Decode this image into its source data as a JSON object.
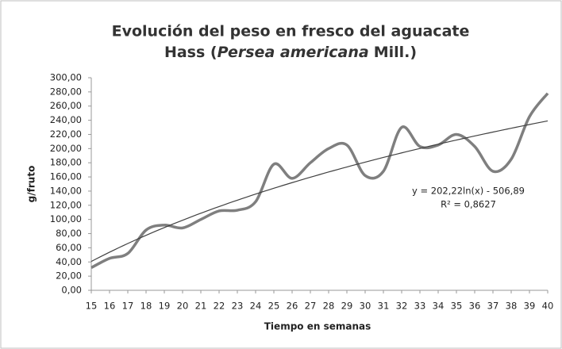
{
  "chart_data": {
    "type": "line",
    "title": [
      "Evolución del peso en fresco del aguacate",
      "Hass (",
      "Persea americana",
      "Mill.)"
    ],
    "x_label": "Tiempo en semanas",
    "y_label": "g/fruto",
    "x": [
      15,
      16,
      17,
      18,
      19,
      20,
      21,
      22,
      23,
      24,
      25,
      26,
      27,
      28,
      29,
      30,
      31,
      32,
      33,
      34,
      35,
      36,
      37,
      38,
      39,
      40
    ],
    "xlim": [
      15,
      40
    ],
    "xticks": [
      15,
      16,
      17,
      18,
      19,
      20,
      21,
      22,
      23,
      24,
      25,
      26,
      27,
      28,
      29,
      30,
      31,
      32,
      33,
      34,
      35,
      36,
      37,
      38,
      39,
      40
    ],
    "series": [
      {
        "color": "#7f7f7f",
        "values": [
          32,
          45,
          52,
          85,
          92,
          88,
          100,
          112,
          113,
          125,
          178,
          158,
          180,
          200,
          205,
          162,
          168,
          230,
          203,
          205,
          220,
          203,
          168,
          185,
          245,
          278
        ]
      }
    ],
    "ylim": [
      0,
      300
    ],
    "yticks": [
      {
        "value": 0,
        "label": "0,00"
      },
      {
        "value": 20,
        "label": "20,00"
      },
      {
        "value": 40,
        "label": "40,00"
      },
      {
        "value": 60,
        "label": "60,00"
      },
      {
        "value": 80,
        "label": "80,00"
      },
      {
        "value": 100,
        "label": "100,00"
      },
      {
        "value": 120,
        "label": "120,00"
      },
      {
        "value": 140,
        "label": "140,00"
      },
      {
        "value": 160,
        "label": "160,00"
      },
      {
        "value": 180,
        "label": "180,00"
      },
      {
        "value": 200,
        "label": "200,00"
      },
      {
        "value": 220,
        "label": "220,00"
      },
      {
        "value": 240,
        "label": "240,00"
      },
      {
        "value": 260,
        "label": "260,00"
      },
      {
        "value": 280,
        "label": "280,00"
      },
      {
        "value": 300,
        "label": "300,00"
      }
    ],
    "trendline": {
      "type": "log",
      "a": 202.22,
      "b": -506.89,
      "color": "#404040",
      "label": "y = 202,22ln(x) - 506,89",
      "r2_label": "R² = 0,8627"
    }
  }
}
